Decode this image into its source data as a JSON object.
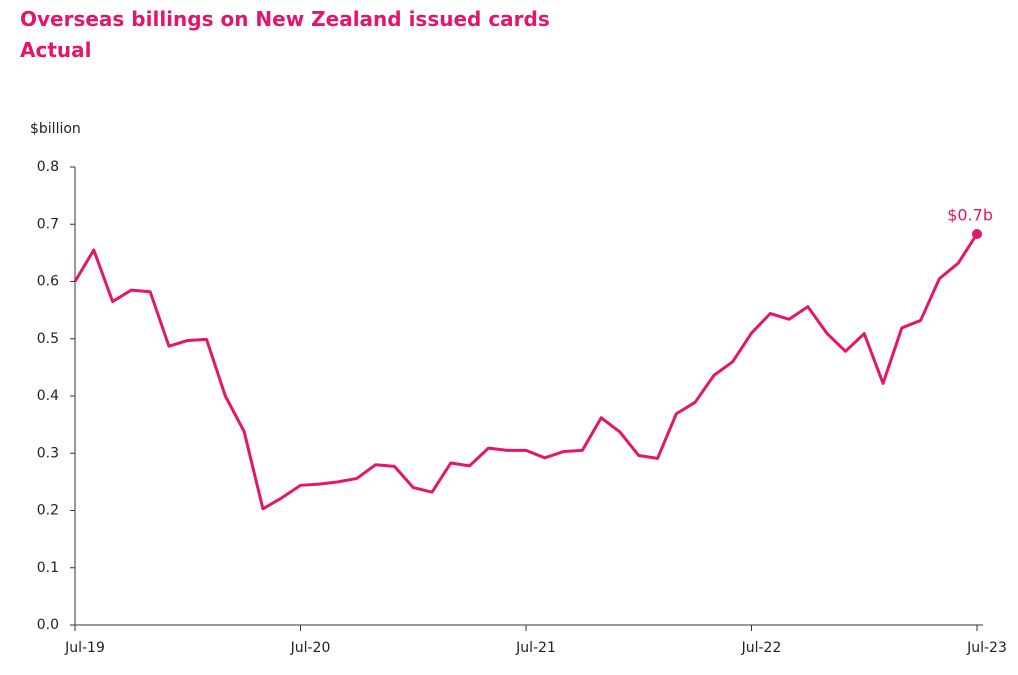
{
  "chart_data": {
    "type": "line",
    "title": "Overseas billings on New Zealand issued cards",
    "subtitle": "Actual",
    "y_label": "$billion",
    "categories": [
      "Jul-19",
      null,
      null,
      null,
      null,
      null,
      null,
      null,
      null,
      null,
      null,
      null,
      "Jul-20",
      null,
      null,
      null,
      null,
      null,
      null,
      null,
      null,
      null,
      null,
      null,
      "Jul-21",
      null,
      null,
      null,
      null,
      null,
      null,
      null,
      null,
      null,
      null,
      null,
      "Jul-22",
      null,
      null,
      null,
      null,
      null,
      null,
      null,
      null,
      null,
      null,
      null,
      "Jul-23"
    ],
    "series": [
      {
        "name": "Overseas billings",
        "color": "#e3166b",
        "values": [
          0.6,
          0.655,
          0.565,
          0.585,
          0.582,
          0.487,
          0.497,
          0.499,
          0.4,
          0.338,
          0.203,
          0.222,
          0.244,
          0.246,
          0.25,
          0.256,
          0.28,
          0.277,
          0.24,
          0.232,
          0.283,
          0.278,
          0.309,
          0.305,
          0.305,
          0.292,
          0.303,
          0.305,
          0.362,
          0.337,
          0.296,
          0.291,
          0.369,
          0.389,
          0.436,
          0.46,
          0.51,
          0.544,
          0.534,
          0.556,
          0.51,
          0.478,
          0.509,
          0.422,
          0.519,
          0.532,
          0.605,
          0.632,
          0.683
        ]
      }
    ],
    "annotation": "$0.7b",
    "ylim": [
      0,
      0.8
    ],
    "yticks": [
      {
        "value": 0,
        "label": "0.0"
      },
      0.1,
      0.2,
      0.3,
      0.4,
      0.5,
      0.6,
      0.7,
      0.8
    ],
    "grid": false
  }
}
